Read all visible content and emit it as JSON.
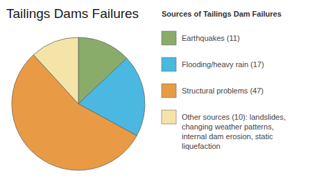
{
  "chart_data": {
    "type": "pie",
    "title": "Tailings Dams Failures",
    "legend_title": "Sources of Tailings Dam Failures",
    "categories": [
      "Earthquakes (11)",
      "Flooding/heavy rain (17)",
      "Structural problems (47)",
      "Other sources (10): landslides,\nchanging weather patterns,\ninternal dam erosion, static\nliquefaction"
    ],
    "values": [
      11,
      17,
      47,
      10
    ],
    "colors": [
      "#8aac6a",
      "#4ab8e0",
      "#e89a45",
      "#f5e4a8"
    ],
    "legend": "right"
  }
}
